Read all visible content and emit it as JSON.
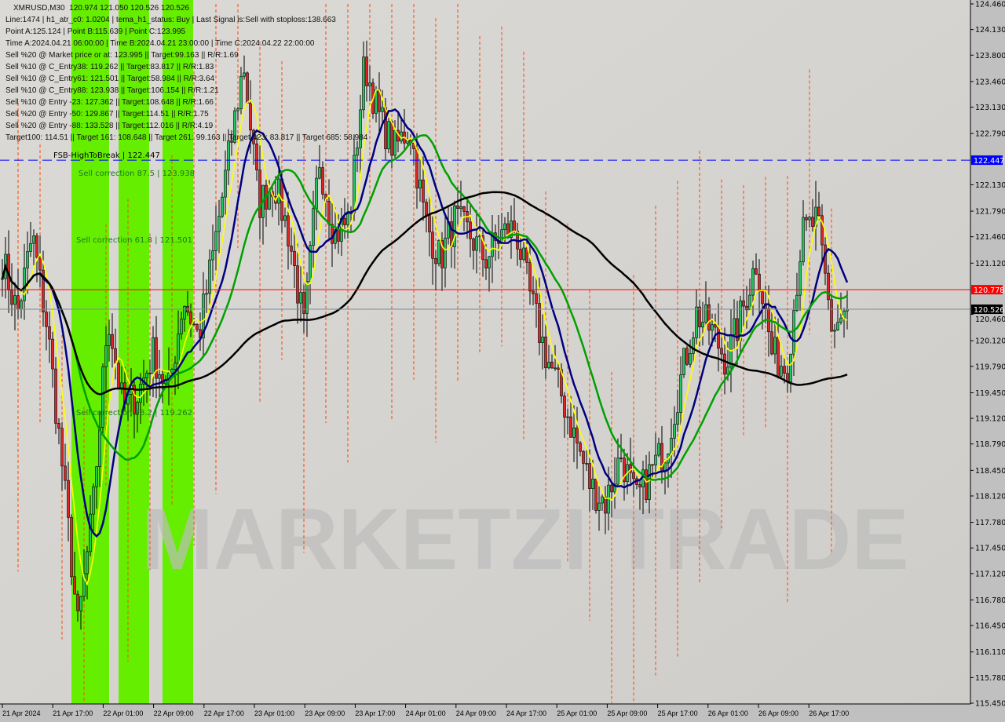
{
  "chart_data": {
    "type": "candlestick",
    "symbol": "XMRUSD,M30",
    "ohlc_header": "120.974 121.050 120.526 120.526",
    "y_ticks": [
      "124.460",
      "124.130",
      "123.800",
      "123.460",
      "123.130",
      "122.790",
      "122.130",
      "121.790",
      "121.460",
      "121.120",
      "120.460",
      "120.120",
      "119.790",
      "119.450",
      "119.120",
      "118.790",
      "118.450",
      "118.120",
      "117.780",
      "117.450",
      "117.120",
      "116.780",
      "116.450",
      "116.110",
      "115.780",
      "115.450"
    ],
    "ylim": [
      115.45,
      124.46
    ],
    "x_ticks": [
      "21 Apr 2024",
      "21 Apr 17:00",
      "22 Apr 01:00",
      "22 Apr 09:00",
      "22 Apr 17:00",
      "23 Apr 01:00",
      "23 Apr 09:00",
      "23 Apr 17:00",
      "24 Apr 01:00",
      "24 Apr 09:00",
      "24 Apr 17:00",
      "25 Apr 01:00",
      "25 Apr 09:00",
      "25 Apr 17:00",
      "26 Apr 01:00",
      "26 Apr 09:00",
      "26 Apr 17:00"
    ],
    "close_path": [
      121.17,
      120.47,
      121.48,
      120.26,
      118.44,
      116.42,
      117.94,
      120.47,
      119.25,
      119.45,
      119.96,
      119.45,
      120.67,
      120.16,
      121.27,
      122.49,
      123.7,
      121.88,
      122.18,
      121.48,
      120.26,
      122.49,
      121.48,
      121.68,
      123.7,
      122.99,
      122.59,
      122.89,
      121.68,
      121.17,
      121.68,
      121.48,
      121.17,
      121.48,
      121.58,
      120.67,
      119.96,
      119.45,
      118.85,
      118.24,
      118.04,
      118.65,
      118.04,
      118.44,
      118.75,
      119.66,
      120.47,
      120.26,
      119.86,
      120.47,
      121.17,
      119.96,
      119.76,
      121.48,
      121.68,
      120.26,
      120.526
    ],
    "levels": [
      {
        "label": "122.447",
        "price": 122.447,
        "color": "#0000ff",
        "style": "dashed",
        "name": "FSB-HighToBreak | 122.447"
      },
      {
        "label": "120.778",
        "price": 120.778,
        "color": "#ff0000",
        "style": "solid"
      },
      {
        "label": "120.526",
        "price": 120.526,
        "color": "#000000",
        "style": "solid"
      }
    ],
    "annotations": [
      "Sell correction 87.5 | 123.938",
      "Sell correction 61.8 | 121.501",
      "Sell correction 38.2 | 119.262"
    ],
    "colors": {
      "bull": "#22c55e",
      "bear": "#dc2626",
      "zone": "#66ee00",
      "ma_fast": "#ffff00",
      "ma_mid": "#00a000",
      "ma_navy": "#000080",
      "ma_slow": "#000000",
      "dashed": "#ff4500"
    }
  },
  "info": {
    "line1": "Line:1474 | h1_atr_c0: 1.0204 | tema_h1_status: Buy | Last Signal is:Sell with stoploss:138.663",
    "line2": "Point A:125.124 | Point B:115.639 | Point C:123.995",
    "line3": "Time A:2024.04.21 06:00:00 | Time B:2024.04.21 23:00:00 | Time C:2024.04.22 22:00:00",
    "line4": "Sell %20 @ Market price or at: 123.995 || Target:99.163 || R/R:1.69",
    "line5": "Sell %10 @ C_Entry38: 119.262 || Target:83.817 || R/R:1.83",
    "line6": "Sell %10 @ C_Entry61: 121.501 || Target:58.984 || R/R:3.64",
    "line7": "Sell %10 @ C_Entry88: 123.938 || Target:106.154 || R/R:1.21",
    "line8": "Sell %10 @ Entry -23: 127.362 || Target:108.648 || R/R:1.66",
    "line9": "Sell %20 @ Entry -50: 129.867 || Target:114.51 || R/R:1.75",
    "line10": "Sell %20 @ Entry -88: 133.528 || Target:112.016 || R/R:4.19",
    "line11": "Target100: 114.51 || Target 161: 108.648 || Target 261: 99.163 || Target 423: 83.817 || Target 685: 58.984"
  },
  "watermark": "MARKETZI TRADE"
}
